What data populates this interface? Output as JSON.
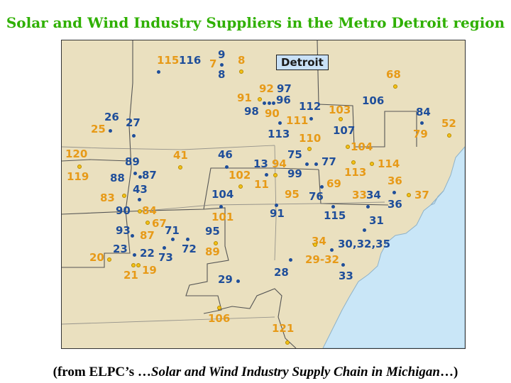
{
  "title": "Solar and Wind Industry Suppliers in the Metro Detroit region",
  "caption_prefix": "(from ELPC’s …",
  "caption_italic": "Solar and Wind Industry Supply Chain in Michigan",
  "caption_suffix": "…)",
  "city_label": "Detroit",
  "colors": {
    "solar": "#e79a18",
    "wind": "#1f4e9a",
    "land": "#eae0bf",
    "water": "#c9e6f7",
    "title": "#2fb000"
  },
  "labels": [
    {
      "text": "115",
      "color": "orange"
    },
    {
      "text": "116",
      "color": "blue"
    },
    {
      "text": "9",
      "color": "blue"
    },
    {
      "text": "7",
      "color": "orange"
    },
    {
      "text": "8",
      "color": "blue"
    },
    {
      "text": "8",
      "color": "orange"
    },
    {
      "text": "68",
      "color": "orange"
    },
    {
      "text": "92",
      "color": "orange"
    },
    {
      "text": "97",
      "color": "blue"
    },
    {
      "text": "91",
      "color": "orange"
    },
    {
      "text": "96",
      "color": "blue"
    },
    {
      "text": "98",
      "color": "blue"
    },
    {
      "text": "90",
      "color": "orange"
    },
    {
      "text": "112",
      "color": "blue"
    },
    {
      "text": "103",
      "color": "orange"
    },
    {
      "text": "106",
      "color": "blue"
    },
    {
      "text": "84",
      "color": "blue"
    },
    {
      "text": "26",
      "color": "blue"
    },
    {
      "text": "27",
      "color": "blue"
    },
    {
      "text": "111",
      "color": "orange"
    },
    {
      "text": "113",
      "color": "blue"
    },
    {
      "text": "107",
      "color": "blue"
    },
    {
      "text": "79",
      "color": "orange"
    },
    {
      "text": "52",
      "color": "orange"
    },
    {
      "text": "25",
      "color": "orange"
    },
    {
      "text": "110",
      "color": "orange"
    },
    {
      "text": "104",
      "color": "orange"
    },
    {
      "text": "120",
      "color": "orange"
    },
    {
      "text": "41",
      "color": "orange"
    },
    {
      "text": "46",
      "color": "blue"
    },
    {
      "text": "75",
      "color": "blue"
    },
    {
      "text": "77",
      "color": "blue"
    },
    {
      "text": "89",
      "color": "blue"
    },
    {
      "text": "13",
      "color": "blue"
    },
    {
      "text": "94",
      "color": "orange"
    },
    {
      "text": "114",
      "color": "orange"
    },
    {
      "text": "119",
      "color": "orange"
    },
    {
      "text": "88",
      "color": "blue"
    },
    {
      "text": "87",
      "color": "blue"
    },
    {
      "text": "102",
      "color": "orange"
    },
    {
      "text": "99",
      "color": "blue"
    },
    {
      "text": "113",
      "color": "orange"
    },
    {
      "text": "36",
      "color": "orange"
    },
    {
      "text": "11",
      "color": "orange"
    },
    {
      "text": "69",
      "color": "orange"
    },
    {
      "text": "43",
      "color": "blue"
    },
    {
      "text": "104",
      "color": "blue"
    },
    {
      "text": "95",
      "color": "orange"
    },
    {
      "text": "76",
      "color": "blue"
    },
    {
      "text": "33",
      "color": "orange"
    },
    {
      "text": "34",
      "color": "blue"
    },
    {
      "text": "37",
      "color": "orange"
    },
    {
      "text": "83",
      "color": "orange"
    },
    {
      "text": "36",
      "color": "blue"
    },
    {
      "text": "90",
      "color": "blue"
    },
    {
      "text": "84",
      "color": "orange"
    },
    {
      "text": "91",
      "color": "blue"
    },
    {
      "text": "115",
      "color": "blue"
    },
    {
      "text": "101",
      "color": "orange"
    },
    {
      "text": "31",
      "color": "blue"
    },
    {
      "text": "67",
      "color": "orange"
    },
    {
      "text": "93",
      "color": "blue"
    },
    {
      "text": "71",
      "color": "blue"
    },
    {
      "text": "95",
      "color": "blue"
    },
    {
      "text": "87",
      "color": "orange"
    },
    {
      "text": "34",
      "color": "orange"
    },
    {
      "text": "30,32,35",
      "color": "blue"
    },
    {
      "text": "72",
      "color": "blue"
    },
    {
      "text": "23",
      "color": "blue"
    },
    {
      "text": "89",
      "color": "orange"
    },
    {
      "text": "22",
      "color": "blue"
    },
    {
      "text": "20",
      "color": "orange"
    },
    {
      "text": "73",
      "color": "blue"
    },
    {
      "text": "29-32",
      "color": "orange"
    },
    {
      "text": "19",
      "color": "orange"
    },
    {
      "text": "21",
      "color": "orange"
    },
    {
      "text": "28",
      "color": "blue"
    },
    {
      "text": "33",
      "color": "blue"
    },
    {
      "text": "29",
      "color": "blue"
    },
    {
      "text": "106",
      "color": "orange"
    },
    {
      "text": "121",
      "color": "orange"
    }
  ]
}
